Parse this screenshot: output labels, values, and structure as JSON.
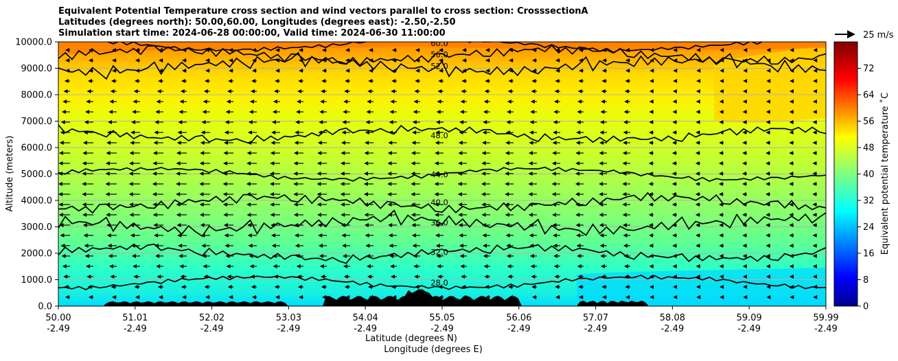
{
  "chart_data": {
    "type": "contour-cross-section",
    "title_lines": [
      "Equivalent Potential Temperature cross section and wind vectors parallel to cross section: CrosssectionA",
      "Latitudes (degrees north): 50.00,60.00, Longitudes (degrees east): -2.50,-2.50",
      "Simulation start time: 2024-06-28 00:00:00, Valid time: 2024-06-30 11:00:00"
    ],
    "ylabel": "Altitude (meters)",
    "xlabel_lat": "Latitude (degrees N)",
    "xlabel_lon": "Longitude (degrees E)",
    "ylim": [
      0,
      10000
    ],
    "xlim": [
      50.0,
      59.99
    ],
    "y_ticks": [
      0,
      1000,
      2000,
      3000,
      4000,
      5000,
      6000,
      7000,
      8000,
      9000,
      10000
    ],
    "y_tick_labels": [
      "0.0",
      "1000.0",
      "2000.0",
      "3000.0",
      "4000.0",
      "5000.0",
      "6000.0",
      "7000.0",
      "8000.0",
      "9000.0",
      "10000.0"
    ],
    "x_ticks_lat": [
      "50.00",
      "51.01",
      "52.02",
      "53.03",
      "54.04",
      "55.05",
      "56.06",
      "57.07",
      "58.08",
      "59.09",
      "59.99"
    ],
    "x_ticks_lon": [
      "-2.49",
      "-2.49",
      "-2.49",
      "-2.49",
      "-2.49",
      "-2.49",
      "-2.49",
      "-2.49",
      "-2.49",
      "-2.49",
      "-2.49"
    ],
    "colorbar": {
      "label": "Equivalent potential temperature $^\\circ$C",
      "label_text": "Equivalent potential temperature ˚C",
      "range": [
        0,
        80
      ],
      "ticks": [
        "0",
        "8",
        "16",
        "24",
        "32",
        "40",
        "48",
        "56",
        "64",
        "72"
      ],
      "tick_values": [
        0,
        8,
        16,
        24,
        32,
        40,
        48,
        56,
        64,
        72
      ]
    },
    "quiver_key": "25 m/s",
    "contours": [
      {
        "level": 28,
        "label": "28.0",
        "approx_altitude_m": 900
      },
      {
        "level": 32,
        "label": "32.0",
        "approx_altitude_m": 2000
      },
      {
        "level": 36,
        "label": "36.0",
        "approx_altitude_m": 3100
      },
      {
        "level": 40,
        "label": "40.0",
        "approx_altitude_m": 3900
      },
      {
        "level": 44,
        "label": "44.0",
        "approx_altitude_m": 5000
      },
      {
        "level": 48,
        "label": "48.0",
        "approx_altitude_m": 6500
      },
      {
        "level": 52,
        "label": "52.0",
        "approx_altitude_m": 9100
      },
      {
        "level": 56,
        "label": "56.0",
        "approx_altitude_m": 9500
      },
      {
        "level": 60,
        "label": "60.0",
        "approx_altitude_m": 9900
      }
    ],
    "colors": {
      "terrain": "#000000",
      "grid": "#b0b0b0",
      "contour": "#000000"
    }
  }
}
